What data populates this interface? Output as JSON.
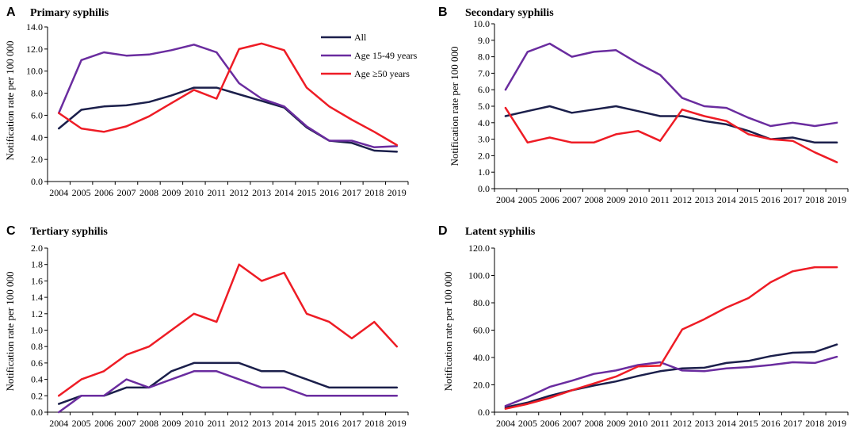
{
  "colors": {
    "all": "#1b1f4b",
    "age_15_49": "#6a2c9f",
    "age_50_plus": "#ee1c25"
  },
  "chart_data": [
    {
      "panel": "A",
      "type": "line",
      "title": "Primary syphilis",
      "ylabel": "Notification rate per 100 000",
      "xlabel": "",
      "ylim": [
        0,
        14
      ],
      "yticks": [
        "0.0",
        "2.0",
        "4.0",
        "6.0",
        "8.0",
        "10.0",
        "12.0",
        "14.0"
      ],
      "x": [
        "2004",
        "2005",
        "2006",
        "2007",
        "2008",
        "2009",
        "2010",
        "2011",
        "2012",
        "2013",
        "2014",
        "2015",
        "2016",
        "2017",
        "2018",
        "2019"
      ],
      "legend": "top-right",
      "series": [
        {
          "name": "All",
          "key": "all",
          "values": [
            4.8,
            6.5,
            6.8,
            6.9,
            7.2,
            7.8,
            8.5,
            8.5,
            7.9,
            7.3,
            6.7,
            4.9,
            3.7,
            3.5,
            2.8,
            2.7
          ]
        },
        {
          "name": "Age 15-49 years",
          "key": "age_15_49",
          "values": [
            6.2,
            11.0,
            11.7,
            11.4,
            11.5,
            11.9,
            12.4,
            11.7,
            8.9,
            7.5,
            6.8,
            5.0,
            3.7,
            3.7,
            3.1,
            3.2
          ]
        },
        {
          "name": "Age ≥50 years",
          "key": "age_50_plus",
          "values": [
            6.2,
            4.8,
            4.5,
            5.0,
            5.9,
            7.1,
            8.3,
            7.5,
            12.0,
            12.5,
            11.9,
            8.5,
            6.8,
            5.6,
            4.5,
            3.3
          ]
        }
      ]
    },
    {
      "panel": "B",
      "type": "line",
      "title": "Secondary syphilis",
      "ylabel": "Notification rate per 100 000",
      "xlabel": "",
      "ylim": [
        0,
        10
      ],
      "yticks": [
        "0.0",
        "1.0",
        "2.0",
        "3.0",
        "4.0",
        "5.0",
        "6.0",
        "7.0",
        "8.0",
        "9.0",
        "10.0"
      ],
      "x": [
        "2004",
        "2005",
        "2006",
        "2007",
        "2008",
        "2009",
        "2010",
        "2011",
        "2012",
        "2013",
        "2014",
        "2015",
        "2016",
        "2017",
        "2018",
        "2019"
      ],
      "series": [
        {
          "name": "All",
          "key": "all",
          "values": [
            4.4,
            4.7,
            5.0,
            4.6,
            4.8,
            5.0,
            4.7,
            4.4,
            4.4,
            4.1,
            3.9,
            3.5,
            3.0,
            3.1,
            2.8,
            2.8
          ]
        },
        {
          "name": "Age 15-49 years",
          "key": "age_15_49",
          "values": [
            6.0,
            8.3,
            8.8,
            8.0,
            8.3,
            8.4,
            7.6,
            6.9,
            5.5,
            5.0,
            4.9,
            4.3,
            3.8,
            4.0,
            3.8,
            4.0
          ]
        },
        {
          "name": "Age ≥50 years",
          "key": "age_50_plus",
          "values": [
            4.9,
            2.8,
            3.1,
            2.8,
            2.8,
            3.3,
            3.5,
            2.9,
            4.8,
            4.4,
            4.1,
            3.3,
            3.0,
            2.9,
            2.2,
            1.6
          ]
        }
      ]
    },
    {
      "panel": "C",
      "type": "line",
      "title": "Tertiary syphilis",
      "ylabel": "Notification rate per 100 000",
      "xlabel": "",
      "ylim": [
        0,
        2
      ],
      "yticks": [
        "0.0",
        "0.2",
        "0.4",
        "0.6",
        "0.8",
        "1.0",
        "1.2",
        "1.4",
        "1.6",
        "1.8",
        "2.0"
      ],
      "x": [
        "2004",
        "2005",
        "2006",
        "2007",
        "2008",
        "2009",
        "2010",
        "2011",
        "2012",
        "2013",
        "2014",
        "2015",
        "2016",
        "2017",
        "2018",
        "2019"
      ],
      "series": [
        {
          "name": "All",
          "key": "all",
          "values": [
            0.1,
            0.2,
            0.2,
            0.3,
            0.3,
            0.5,
            0.6,
            0.6,
            0.6,
            0.5,
            0.5,
            0.4,
            0.3,
            0.3,
            0.3,
            0.3
          ]
        },
        {
          "name": "Age 15-49 years",
          "key": "age_15_49",
          "values": [
            0.0,
            0.2,
            0.2,
            0.4,
            0.3,
            0.4,
            0.5,
            0.5,
            0.4,
            0.3,
            0.3,
            0.2,
            0.2,
            0.2,
            0.2,
            0.2
          ]
        },
        {
          "name": "Age ≥50 years",
          "key": "age_50_plus",
          "values": [
            0.2,
            0.4,
            0.5,
            0.7,
            0.8,
            1.0,
            1.2,
            1.1,
            1.8,
            1.6,
            1.7,
            1.2,
            1.1,
            0.9,
            1.1,
            0.8
          ]
        }
      ]
    },
    {
      "panel": "D",
      "type": "line",
      "title": "Latent syphilis",
      "ylabel": "Notification rate per 100 000",
      "xlabel": "",
      "ylim": [
        0,
        120
      ],
      "yticks": [
        "0.0",
        "20.0",
        "40.0",
        "60.0",
        "80.0",
        "100.0",
        "120.0"
      ],
      "x": [
        "2004",
        "2005",
        "2006",
        "2007",
        "2008",
        "2009",
        "2010",
        "2011",
        "2012",
        "2013",
        "2014",
        "2015",
        "2016",
        "2017",
        "2018",
        "2019"
      ],
      "series": [
        {
          "name": "All",
          "key": "all",
          "values": [
            3.5,
            7.0,
            12.0,
            16.0,
            19.5,
            22.5,
            26.5,
            30.0,
            32.0,
            32.5,
            36.0,
            37.5,
            41.0,
            43.5,
            44.0,
            49.5
          ]
        },
        {
          "name": "Age 15-49 years",
          "key": "age_15_49",
          "values": [
            4.5,
            11.0,
            18.5,
            23.0,
            28.0,
            30.5,
            34.5,
            36.5,
            30.5,
            30.0,
            32.0,
            33.0,
            34.5,
            36.5,
            36.0,
            40.5
          ]
        },
        {
          "name": "Age ≥50 years",
          "key": "age_50_plus",
          "values": [
            2.5,
            6.0,
            10.5,
            16.0,
            21.0,
            26.0,
            33.5,
            34.0,
            60.5,
            68.0,
            76.5,
            83.5,
            95.0,
            103.0,
            106.0,
            106.0
          ]
        }
      ]
    }
  ]
}
